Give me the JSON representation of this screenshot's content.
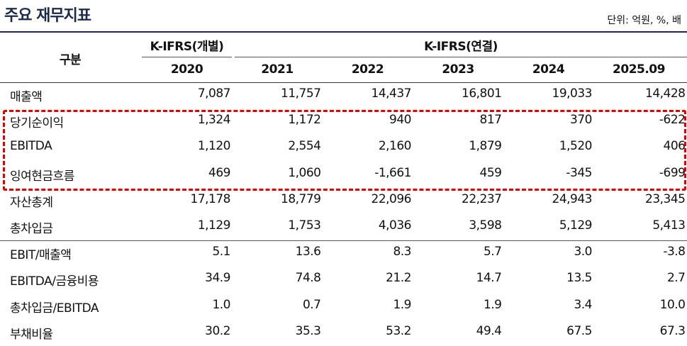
{
  "header": {
    "title": "주요 재무지표",
    "unit": "단위: 억원, %, 배"
  },
  "table": {
    "corner": "구분",
    "groups": [
      "K-IFRS(개별)",
      "K-IFRS(연결)"
    ],
    "columns": [
      "2020",
      "2021",
      "2022",
      "2023",
      "2024",
      "2025.09"
    ],
    "rows": [
      [
        "매출액",
        "7,087",
        "11,757",
        "14,437",
        "16,801",
        "19,033",
        "14,428"
      ],
      [
        "당기순이익",
        "1,324",
        "1,172",
        "940",
        "817",
        "370",
        "-622"
      ],
      [
        "EBITDA",
        "1,120",
        "2,554",
        "2,160",
        "1,879",
        "1,520",
        "406"
      ],
      [
        "잉여현금흐름",
        "469",
        "1,060",
        "-1,661",
        "459",
        "-345",
        "-699"
      ],
      [
        "자산총계",
        "17,178",
        "18,779",
        "22,096",
        "22,237",
        "24,943",
        "23,345"
      ],
      [
        "총차입금",
        "1,129",
        "1,753",
        "4,036",
        "3,598",
        "5,129",
        "5,413"
      ],
      [
        "EBIT/매출액",
        "5.1",
        "13.6",
        "8.3",
        "5.7",
        "3.0",
        "-3.8"
      ],
      [
        "EBITDA/금융비용",
        "34.9",
        "74.8",
        "21.2",
        "14.7",
        "13.5",
        "2.7"
      ],
      [
        "총차입금/EBITDA",
        "1.0",
        "0.7",
        "1.9",
        "1.9",
        "3.4",
        "10.0"
      ],
      [
        "부채비율",
        "30.2",
        "35.3",
        "53.2",
        "49.4",
        "67.5",
        "67.3"
      ]
    ]
  }
}
